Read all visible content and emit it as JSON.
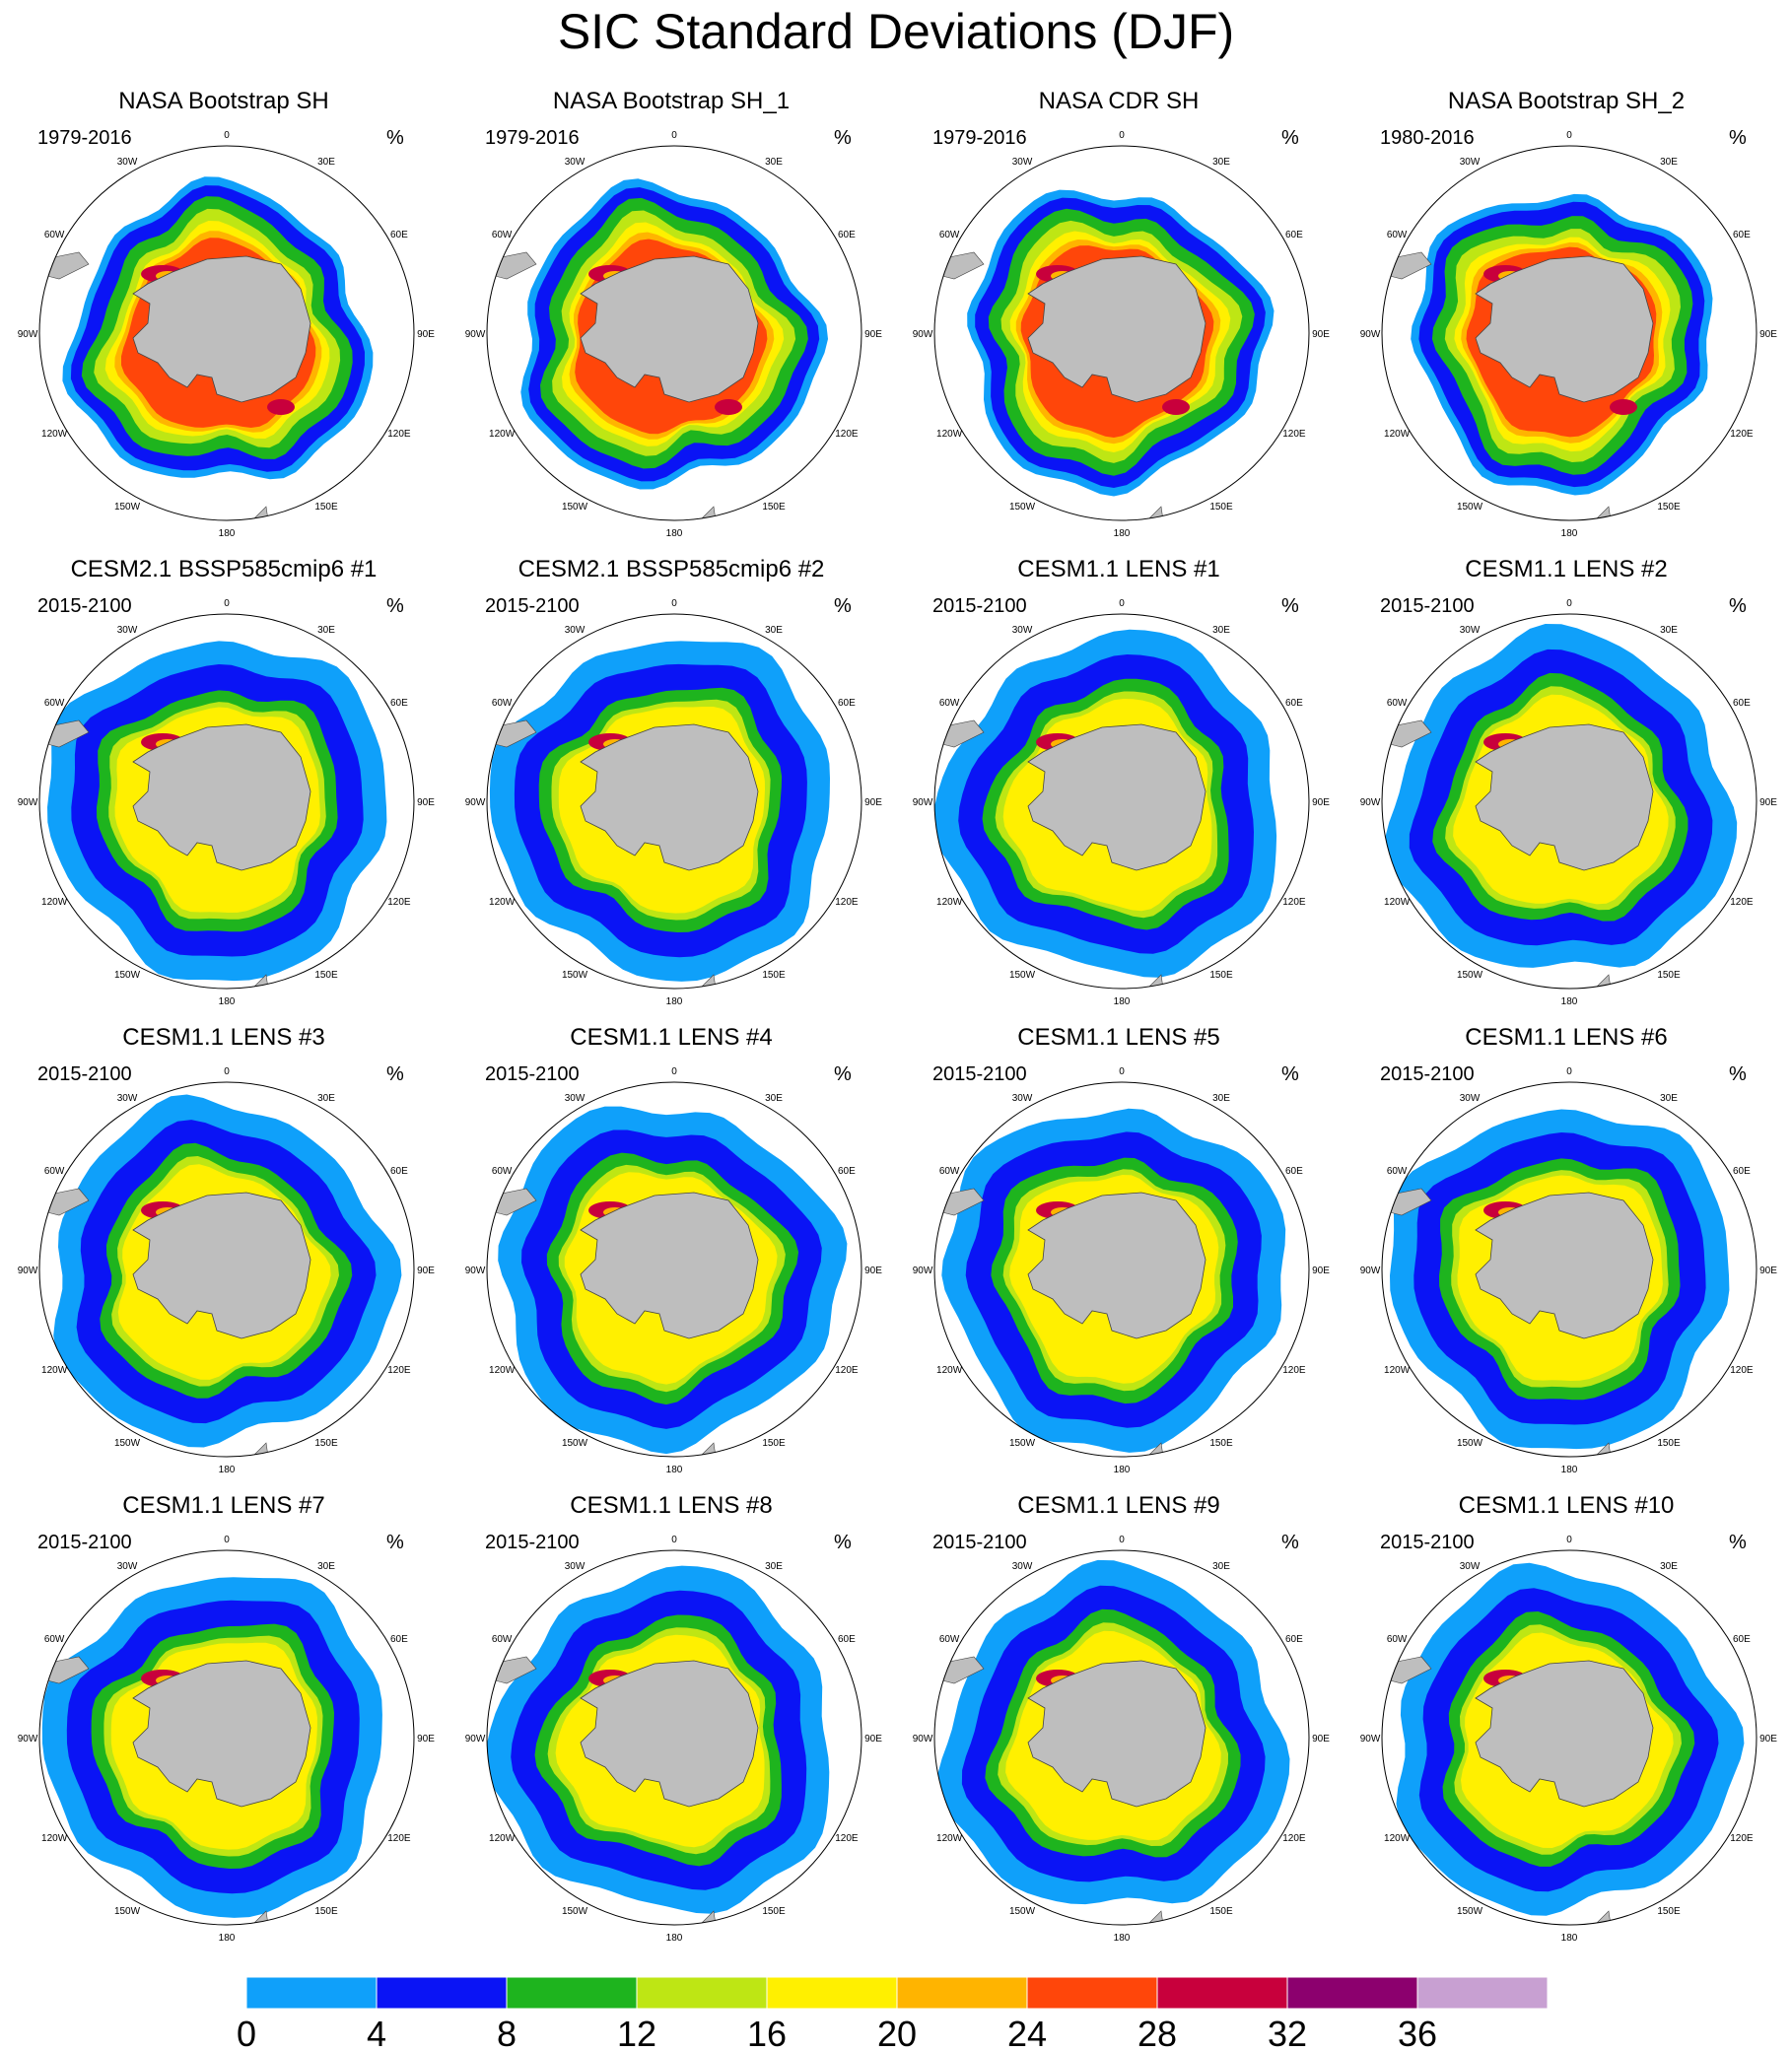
{
  "title": "SIC Standard Deviations (DJF)",
  "units": "%",
  "longitude_labels": [
    "0",
    "30E",
    "60E",
    "90E",
    "120E",
    "150E",
    "180",
    "150W",
    "120W",
    "90W",
    "60W",
    "30W"
  ],
  "panels": [
    {
      "title": "NASA Bootstrap SH",
      "years": "1979-2016",
      "source": "obs"
    },
    {
      "title": "NASA Bootstrap SH_1",
      "years": "1979-2016",
      "source": "obs"
    },
    {
      "title": "NASA CDR SH",
      "years": "1979-2016",
      "source": "obs"
    },
    {
      "title": "NASA Bootstrap SH_2",
      "years": "1980-2016",
      "source": "obs"
    },
    {
      "title": "CESM2.1 BSSP585cmip6 #1",
      "years": "2015-2100",
      "source": "model"
    },
    {
      "title": "CESM2.1 BSSP585cmip6 #2",
      "years": "2015-2100",
      "source": "model"
    },
    {
      "title": "CESM1.1 LENS #1",
      "years": "2015-2100",
      "source": "model"
    },
    {
      "title": "CESM1.1 LENS #2",
      "years": "2015-2100",
      "source": "model"
    },
    {
      "title": "CESM1.1 LENS #3",
      "years": "2015-2100",
      "source": "model"
    },
    {
      "title": "CESM1.1 LENS #4",
      "years": "2015-2100",
      "source": "model"
    },
    {
      "title": "CESM1.1 LENS #5",
      "years": "2015-2100",
      "source": "model"
    },
    {
      "title": "CESM1.1 LENS #6",
      "years": "2015-2100",
      "source": "model"
    },
    {
      "title": "CESM1.1 LENS #7",
      "years": "2015-2100",
      "source": "model"
    },
    {
      "title": "CESM1.1 LENS #8",
      "years": "2015-2100",
      "source": "model"
    },
    {
      "title": "CESM1.1 LENS #9",
      "years": "2015-2100",
      "source": "model"
    },
    {
      "title": "CESM1.1 LENS #10",
      "years": "2015-2100",
      "source": "model"
    }
  ],
  "colorbar": {
    "labels": [
      "0",
      "4",
      "8",
      "12",
      "16",
      "20",
      "24",
      "28",
      "32",
      "36"
    ],
    "colors": [
      "#0fa0fa",
      "#0a14f5",
      "#1eb41e",
      "#bee614",
      "#fff000",
      "#ffb400",
      "#ff460a",
      "#c8003c",
      "#8c006e",
      "#c8a0d2"
    ]
  },
  "land_color": "#bebebe",
  "ocean_color": "#ffffff"
}
